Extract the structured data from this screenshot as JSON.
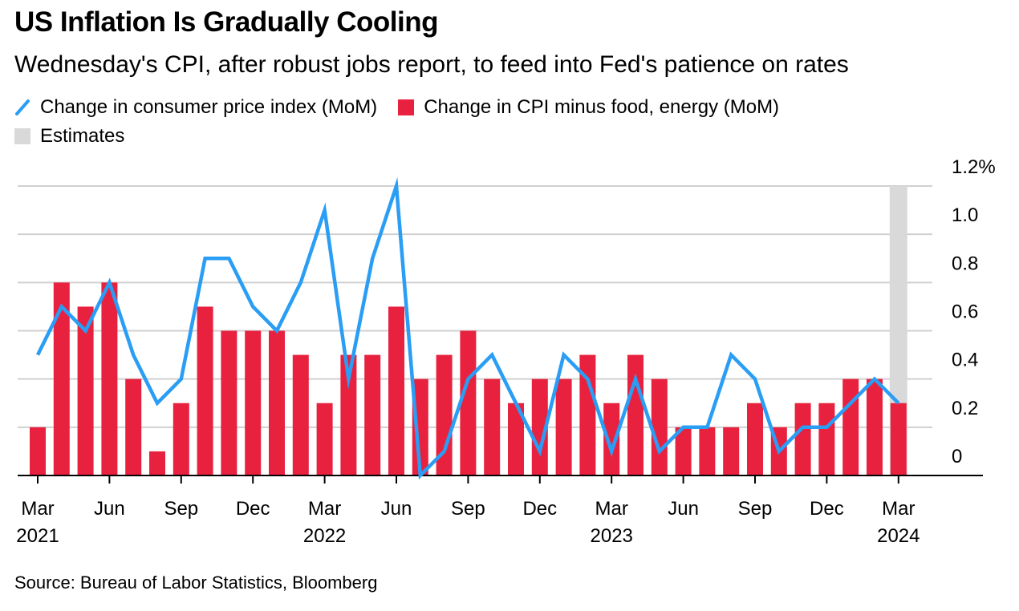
{
  "header": {
    "title": "US Inflation Is Gradually Cooling",
    "subtitle": "Wednesday's CPI, after robust jobs report, to feed into Fed's patience on rates"
  },
  "legend": {
    "line_label": "Change in consumer price index (MoM)",
    "bar_label": "Change in CPI minus food, energy (MoM)",
    "estimate_label": "Estimates"
  },
  "source": "Source: Bureau of Labor Statistics, Bloomberg",
  "colors": {
    "line": "#2a9df4",
    "bar": "#e8213e",
    "estimate": "#d9d9d9",
    "grid": "#d0d0d0"
  },
  "chart_data": {
    "type": "bar",
    "categories": [
      "2021-03",
      "2021-04",
      "2021-05",
      "2021-06",
      "2021-07",
      "2021-08",
      "2021-09",
      "2021-10",
      "2021-11",
      "2021-12",
      "2022-01",
      "2022-02",
      "2022-03",
      "2022-04",
      "2022-05",
      "2022-06",
      "2022-07",
      "2022-08",
      "2022-09",
      "2022-10",
      "2022-11",
      "2022-12",
      "2023-01",
      "2023-02",
      "2023-03",
      "2023-04",
      "2023-05",
      "2023-06",
      "2023-07",
      "2023-08",
      "2023-09",
      "2023-10",
      "2023-11",
      "2023-12",
      "2024-01",
      "2024-02",
      "2024-03"
    ],
    "series": [
      {
        "name": "Change in CPI minus food, energy (MoM)",
        "type": "bar",
        "values": [
          0.2,
          0.8,
          0.7,
          0.8,
          0.4,
          0.1,
          0.3,
          0.7,
          0.6,
          0.6,
          0.6,
          0.5,
          0.3,
          0.5,
          0.5,
          0.7,
          0.4,
          0.5,
          0.6,
          0.4,
          0.3,
          0.4,
          0.4,
          0.5,
          0.3,
          0.5,
          0.4,
          0.2,
          0.2,
          0.2,
          0.3,
          0.2,
          0.3,
          0.3,
          0.4,
          0.4,
          0.3
        ]
      },
      {
        "name": "Change in consumer price index (MoM)",
        "type": "line",
        "values": [
          0.5,
          0.7,
          0.6,
          0.8,
          0.5,
          0.3,
          0.4,
          0.9,
          0.9,
          0.7,
          0.6,
          0.8,
          1.1,
          0.4,
          0.9,
          1.2,
          0.0,
          0.1,
          0.4,
          0.5,
          0.3,
          0.1,
          0.5,
          0.4,
          0.1,
          0.4,
          0.1,
          0.2,
          0.2,
          0.5,
          0.4,
          0.1,
          0.2,
          0.2,
          0.3,
          0.4,
          0.3
        ]
      }
    ],
    "estimate_index": 36,
    "y_ticks": [
      "0",
      "0.2",
      "0.4",
      "0.6",
      "0.8",
      "1.0",
      "1.2%"
    ],
    "y_tick_values": [
      0,
      0.2,
      0.4,
      0.6,
      0.8,
      1.0,
      1.2
    ],
    "ylim": [
      0,
      1.2
    ],
    "x_ticks": [
      {
        "index": 0,
        "month": "Mar",
        "year": "2021"
      },
      {
        "index": 3,
        "month": "Jun",
        "year": ""
      },
      {
        "index": 6,
        "month": "Sep",
        "year": ""
      },
      {
        "index": 9,
        "month": "Dec",
        "year": ""
      },
      {
        "index": 12,
        "month": "Mar",
        "year": "2022"
      },
      {
        "index": 15,
        "month": "Jun",
        "year": ""
      },
      {
        "index": 18,
        "month": "Sep",
        "year": ""
      },
      {
        "index": 21,
        "month": "Dec",
        "year": ""
      },
      {
        "index": 24,
        "month": "Mar",
        "year": "2023"
      },
      {
        "index": 27,
        "month": "Jun",
        "year": ""
      },
      {
        "index": 30,
        "month": "Sep",
        "year": ""
      },
      {
        "index": 33,
        "month": "Dec",
        "year": ""
      },
      {
        "index": 36,
        "month": "Mar",
        "year": "2024"
      }
    ],
    "grid": true,
    "y_axis_position": "right",
    "legend_position": "top-left"
  }
}
